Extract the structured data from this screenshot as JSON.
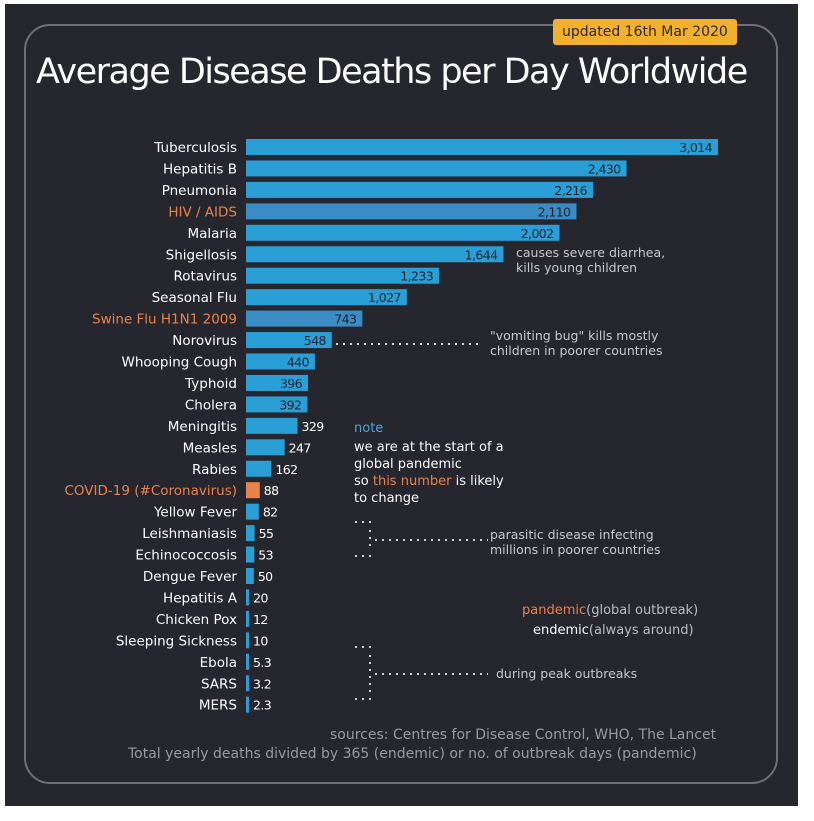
{
  "badge": "updated 16th Mar 2020",
  "title": "Average Disease Deaths per Day Worldwide",
  "chart_data": {
    "type": "bar",
    "orientation": "horizontal",
    "categories": [
      "Tuberculosis",
      "Hepatitis B",
      "Pneumonia",
      "HIV / AIDS",
      "Malaria",
      "Shigellosis",
      "Rotavirus",
      "Seasonal Flu",
      "Swine Flu H1N1 2009",
      "Norovirus",
      "Whooping Cough",
      "Typhoid",
      "Cholera",
      "Meningitis",
      "Measles",
      "Rabies",
      "COVID-19 (#Coronavirus)",
      "Yellow Fever",
      "Leishmaniasis",
      "Echinococcosis",
      "Dengue Fever",
      "Hepatitis A",
      "Chicken Pox",
      "Sleeping Sickness",
      "Ebola",
      "SARS",
      "MERS"
    ],
    "values": [
      3014,
      2430,
      2216,
      2110,
      2002,
      1644,
      1233,
      1027,
      743,
      548,
      440,
      396,
      392,
      329,
      247,
      162,
      88,
      82,
      55,
      53,
      50,
      20,
      12,
      10,
      5.3,
      3.2,
      2.3
    ],
    "value_labels": [
      "3,014",
      "2,430",
      "2,216",
      "2,110",
      "2,002",
      "1,644",
      "1,233",
      "1,027",
      "743",
      "548",
      "440",
      "396",
      "392",
      "329",
      "247",
      "162",
      "88",
      "82",
      "55",
      "53",
      "50",
      "20",
      "12",
      "10",
      "5.3",
      "3.2",
      "2.3"
    ],
    "highlight": {
      "HIV / AIDS": "pandemic",
      "Swine Flu H1N1 2009": "pandemic",
      "COVID-19 (#Coronavirus)": "current"
    },
    "colors": {
      "bar": "#2a9fd6",
      "pandemic_bar": "#3a8cc4",
      "covid_bar": "#e8834a",
      "label": "#ffffff",
      "pandemic_label": "#e8834a"
    },
    "xlim": [
      0,
      3014
    ],
    "grid": false,
    "xlabel": "",
    "ylabel": ""
  },
  "annotations": {
    "shigellosis": [
      "causes severe diarrhea,",
      "kills young children"
    ],
    "norovirus": [
      "\"vomiting bug\" kills mostly",
      "children in poorer countries"
    ],
    "parasitic": [
      "parasitic disease infecting",
      "millions in poorer countries"
    ],
    "outbreaks": "during peak outbreaks"
  },
  "note": {
    "label": "note",
    "line1": "we are at the start of a",
    "line2": "global pandemic",
    "line3_before": "so ",
    "line3_highlight": "this number",
    "line3_after": " is likely",
    "line4": "to change"
  },
  "legend": {
    "pandemic_term": "pandemic",
    "pandemic_desc": "(global outbreak)",
    "endemic_term": "endemic",
    "endemic_desc": "(always around)"
  },
  "sources": {
    "line1": "sources: Centres for Disease Control, WHO, The Lancet",
    "line2": "Total yearly deaths divided by 365 (endemic) or no. of outbreak days (pandemic)"
  }
}
